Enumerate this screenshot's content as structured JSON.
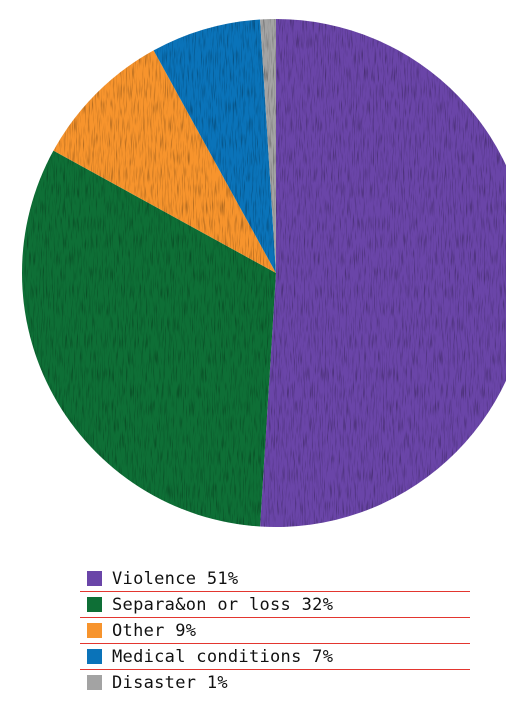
{
  "chart_data": {
    "type": "pie",
    "slices": [
      {
        "label": "Violence",
        "value": 51,
        "value_label": "51%",
        "color": "#6a45a8"
      },
      {
        "label": "Separa&on or loss",
        "value": 32,
        "value_label": "32%",
        "color": "#0e6f36"
      },
      {
        "label": "Other",
        "value": 9,
        "value_label": "9%",
        "color": "#f7942d"
      },
      {
        "label": "Medical conditions",
        "value": 7,
        "value_label": "7%",
        "color": "#0a73b9"
      },
      {
        "label": "Disaster",
        "value": 1,
        "value_label": "1%",
        "color": "#a3a3a3"
      }
    ],
    "legend_position": "bottom"
  }
}
